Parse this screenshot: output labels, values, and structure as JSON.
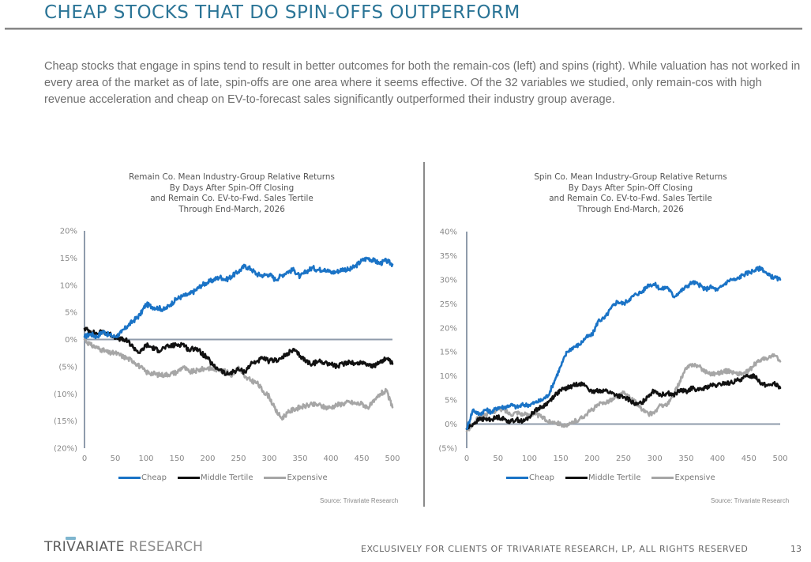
{
  "page": {
    "title": "CHEAP STOCKS THAT DO SPIN-OFFS OUTPERFORM",
    "intro": "Cheap stocks that engage in spins tend to result in better outcomes for both the remain-cos (left) and spins (right). While valuation has not worked in every area of the market as of late, spin-offs are one area where it seems effective. Of the 32 variables we studied, only remain-cos with high revenue acceleration and cheap on EV-to-forecast sales significantly outperformed their industry group average.",
    "footer": {
      "logo_strong": "TRI",
      "logo_v": "V",
      "logo_rest": "ARIATE",
      "logo_light": " RESEARCH",
      "notice": "EXCLUSIVELY FOR CLIENTS OF TRIVARIATE RESEARCH, LP, ALL RIGHTS RESERVED",
      "page_number": "13"
    }
  },
  "colors": {
    "title": "#2a7496",
    "cheap": "#1a73c6",
    "middle": "#111111",
    "expensive": "#a6a6a6",
    "axis": "#8f9bab"
  },
  "chart_data": [
    {
      "type": "line",
      "title_lines": [
        "Remain Co. Mean Industry-Group Relative Returns",
        "By Days After Spin-Off Closing",
        "and Remain Co. EV-to-Fwd. Sales Tertile",
        "Through End-March, 2026"
      ],
      "xlabel": "",
      "ylabel": "",
      "xlim": [
        0,
        500
      ],
      "ylim": [
        -20,
        20
      ],
      "x_ticks": [
        0,
        50,
        100,
        150,
        200,
        250,
        300,
        350,
        400,
        450,
        500
      ],
      "y_ticks": [
        20,
        15,
        10,
        5,
        0,
        -5,
        -10,
        -15,
        -20
      ],
      "y_tick_labels": [
        "20%",
        "15%",
        "10%",
        "5%",
        "0%",
        "(5%)",
        "(10%)",
        "(15%)",
        "(20%)"
      ],
      "grid": false,
      "legend_position": "bottom",
      "legend": [
        "Cheap",
        "Middle Tertile",
        "Expensive"
      ],
      "source": "Source: Trivariate Research",
      "x": [
        0,
        10,
        20,
        30,
        40,
        50,
        60,
        70,
        80,
        90,
        100,
        110,
        120,
        130,
        140,
        150,
        160,
        170,
        180,
        190,
        200,
        210,
        220,
        230,
        240,
        250,
        260,
        270,
        280,
        290,
        300,
        310,
        320,
        330,
        340,
        350,
        360,
        370,
        380,
        390,
        400,
        410,
        420,
        430,
        440,
        450,
        460,
        470,
        480,
        490,
        500
      ],
      "series": [
        {
          "name": "Cheap",
          "values": [
            0.5,
            1.0,
            0.5,
            1.5,
            0.8,
            0.5,
            1.3,
            2.5,
            3.5,
            4.5,
            6.5,
            6.0,
            5.8,
            5.5,
            6.5,
            7.5,
            8.0,
            8.3,
            9.0,
            10.0,
            10.5,
            11.0,
            11.5,
            11.0,
            11.7,
            12.5,
            13.5,
            13.0,
            12.0,
            11.8,
            12.0,
            11.0,
            11.8,
            12.5,
            12.8,
            11.5,
            12.5,
            13.2,
            12.8,
            13.0,
            12.3,
            12.5,
            13.0,
            12.8,
            13.5,
            14.5,
            15.0,
            14.5,
            14.0,
            14.5,
            13.8
          ]
        },
        {
          "name": "Middle Tertile",
          "values": [
            2.0,
            1.5,
            1.0,
            1.5,
            1.0,
            0.5,
            0.0,
            -0.3,
            -1.5,
            -2.5,
            -1.0,
            -1.5,
            -2.0,
            -1.5,
            -1.2,
            -1.0,
            -0.8,
            -2.0,
            -1.5,
            -2.5,
            -3.5,
            -5.0,
            -5.5,
            -6.5,
            -6.0,
            -5.5,
            -6.0,
            -4.5,
            -4.0,
            -3.5,
            -4.0,
            -3.8,
            -3.5,
            -2.5,
            -2.0,
            -3.0,
            -4.0,
            -4.5,
            -4.0,
            -4.2,
            -4.5,
            -5.0,
            -4.5,
            -4.0,
            -4.5,
            -4.2,
            -4.5,
            -5.0,
            -4.0,
            -3.5,
            -4.5
          ]
        },
        {
          "name": "Expensive",
          "values": [
            0.0,
            -1.0,
            -1.5,
            -2.0,
            -2.5,
            -2.5,
            -3.0,
            -3.5,
            -4.0,
            -5.0,
            -6.0,
            -6.2,
            -6.5,
            -6.5,
            -6.3,
            -6.0,
            -5.0,
            -6.0,
            -5.8,
            -5.5,
            -5.2,
            -5.5,
            -5.5,
            -6.0,
            -6.5,
            -5.0,
            -7.0,
            -7.5,
            -8.0,
            -9.5,
            -10.5,
            -13.0,
            -14.5,
            -13.5,
            -12.8,
            -12.5,
            -12.2,
            -12.0,
            -12.0,
            -12.5,
            -12.5,
            -12.0,
            -11.8,
            -11.5,
            -11.8,
            -11.8,
            -12.5,
            -11.5,
            -10.0,
            -9.5,
            -12.5
          ]
        }
      ]
    },
    {
      "type": "line",
      "title_lines": [
        "Spin Co. Mean Industry-Group Relative Returns",
        "By Days After Spin-Off Closing",
        "and Remain Co. EV-to-Fwd. Sales Tertile",
        "Through End-March, 2026"
      ],
      "xlabel": "",
      "ylabel": "",
      "xlim": [
        0,
        500
      ],
      "ylim": [
        -5,
        40
      ],
      "x_ticks": [
        0,
        50,
        100,
        150,
        200,
        250,
        300,
        350,
        400,
        450,
        500
      ],
      "y_ticks": [
        40,
        35,
        30,
        25,
        20,
        15,
        10,
        5,
        0,
        -5
      ],
      "y_tick_labels": [
        "40%",
        "35%",
        "30%",
        "25%",
        "20%",
        "15%",
        "10%",
        "5%",
        "0%",
        "(5%)"
      ],
      "grid": false,
      "legend_position": "bottom",
      "legend": [
        "Cheap",
        "Middle Tertile",
        "Expensive"
      ],
      "source": "Source: Trivariate Research",
      "x": [
        0,
        10,
        20,
        30,
        40,
        50,
        60,
        70,
        80,
        90,
        100,
        110,
        120,
        130,
        140,
        150,
        160,
        170,
        180,
        190,
        200,
        210,
        220,
        230,
        240,
        250,
        260,
        270,
        280,
        290,
        300,
        310,
        320,
        330,
        340,
        350,
        360,
        370,
        380,
        390,
        400,
        410,
        420,
        430,
        440,
        450,
        460,
        470,
        480,
        490,
        500
      ],
      "series": [
        {
          "name": "Cheap",
          "values": [
            -1.0,
            3.0,
            2.0,
            3.0,
            2.5,
            3.5,
            3.5,
            4.0,
            3.5,
            4.0,
            4.0,
            4.5,
            5.0,
            6.0,
            9.0,
            12.0,
            15.0,
            16.0,
            16.5,
            18.0,
            18.5,
            21.5,
            22.0,
            24.0,
            25.5,
            25.0,
            26.0,
            27.0,
            27.5,
            29.0,
            29.0,
            28.0,
            28.5,
            26.5,
            27.5,
            28.5,
            29.5,
            29.0,
            28.0,
            28.5,
            27.8,
            29.0,
            30.0,
            30.0,
            31.0,
            31.5,
            32.0,
            32.5,
            31.0,
            30.5,
            30.0
          ]
        },
        {
          "name": "Middle Tertile",
          "values": [
            -1.0,
            0.0,
            1.0,
            1.0,
            1.0,
            1.5,
            1.0,
            0.5,
            1.0,
            0.5,
            1.5,
            3.0,
            3.5,
            4.5,
            6.0,
            7.0,
            7.5,
            8.0,
            8.5,
            8.0,
            6.5,
            7.0,
            7.0,
            6.5,
            6.0,
            5.5,
            5.0,
            4.0,
            4.5,
            6.0,
            7.0,
            6.0,
            6.5,
            6.0,
            7.0,
            6.8,
            7.5,
            7.0,
            7.5,
            8.0,
            8.0,
            8.5,
            8.5,
            9.0,
            9.5,
            10.0,
            10.0,
            8.5,
            8.0,
            8.5,
            7.5
          ]
        },
        {
          "name": "Expensive",
          "values": [
            -1.5,
            0.0,
            1.5,
            2.0,
            2.5,
            3.0,
            3.0,
            2.0,
            2.5,
            2.0,
            2.0,
            2.0,
            1.5,
            0.5,
            0.5,
            0.0,
            -0.5,
            0.5,
            1.0,
            2.0,
            3.0,
            4.0,
            4.5,
            5.0,
            5.5,
            6.5,
            5.5,
            4.5,
            3.0,
            2.0,
            2.5,
            4.0,
            4.0,
            6.0,
            9.0,
            11.5,
            12.5,
            12.0,
            11.0,
            10.5,
            10.5,
            11.0,
            11.0,
            10.5,
            10.5,
            11.0,
            12.5,
            13.5,
            13.5,
            14.5,
            13.0
          ]
        }
      ]
    }
  ]
}
